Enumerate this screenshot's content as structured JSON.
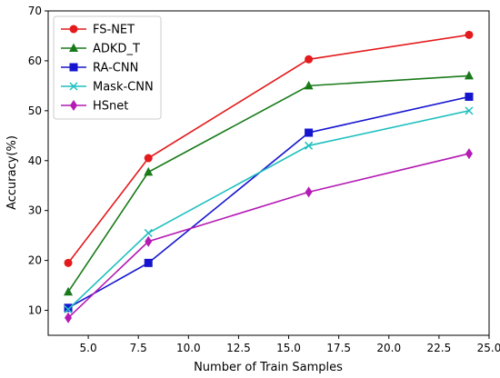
{
  "chart_data": {
    "type": "line",
    "title": "",
    "xlabel": "Number of Train Samples",
    "ylabel": "Accuracy(%)",
    "xlim": [
      3.0,
      25.0
    ],
    "ylim": [
      5,
      70
    ],
    "xticks": [
      5.0,
      7.5,
      10.0,
      12.5,
      15.0,
      17.5,
      20.0,
      22.5,
      25.0
    ],
    "xtick_labels": [
      "5.0",
      "7.5",
      "10.0",
      "12.5",
      "15.0",
      "17.5",
      "20.0",
      "22.5",
      "25.0"
    ],
    "yticks": [
      10,
      20,
      30,
      40,
      50,
      60,
      70
    ],
    "ytick_labels": [
      "10",
      "20",
      "30",
      "40",
      "50",
      "60",
      "70"
    ],
    "grid": false,
    "legend_position": "top-left",
    "x": [
      4,
      8,
      16,
      24
    ],
    "series": [
      {
        "name": "FS-NET",
        "values": [
          19.5,
          40.5,
          60.3,
          65.2
        ],
        "color": "#e41a1c",
        "marker": "circle"
      },
      {
        "name": "ADKD_T",
        "values": [
          13.7,
          37.7,
          55.0,
          57.0
        ],
        "color": "#1a7a1a",
        "marker": "triangle"
      },
      {
        "name": "RA-CNN",
        "values": [
          10.5,
          19.5,
          45.6,
          52.8
        ],
        "color": "#1515d0",
        "marker": "square"
      },
      {
        "name": "Mask-CNN",
        "values": [
          10.2,
          25.5,
          43.0,
          50.0
        ],
        "color": "#1fbfbf",
        "marker": "x"
      },
      {
        "name": "HSnet",
        "values": [
          8.5,
          23.8,
          33.7,
          41.4
        ],
        "color": "#b41ab4",
        "marker": "diamond"
      }
    ]
  }
}
